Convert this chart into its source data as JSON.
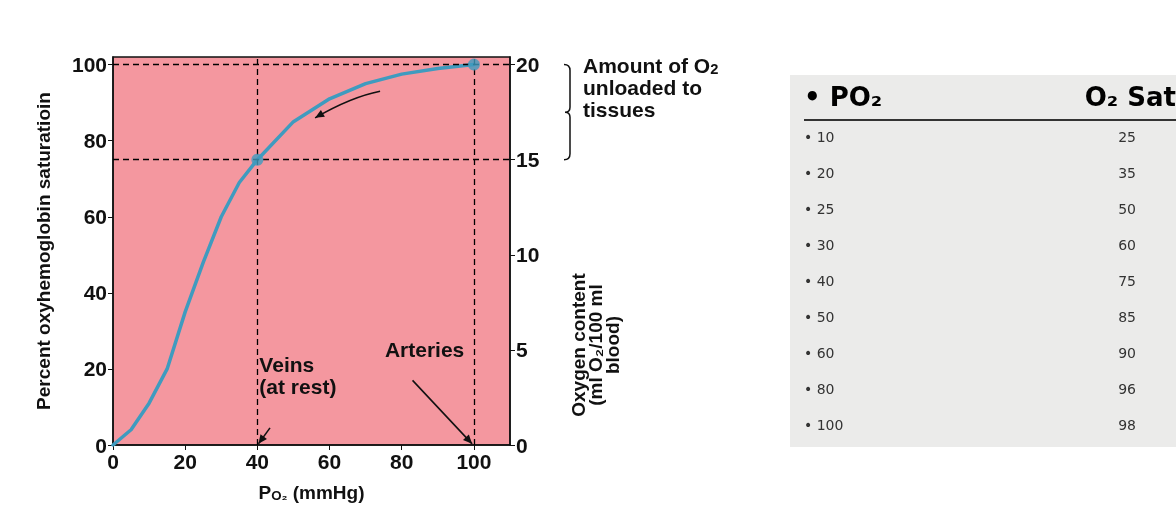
{
  "chart_data": [
    {
      "type": "line",
      "xlabel": "P$_{O₂}$ (mmHg)",
      "ylabel": "Percent oxyhemoglobin saturatioin",
      "y2label": "Oxygen content\n(ml O₂/100 ml\nblood)",
      "xlim": [
        0,
        110
      ],
      "xticks": [
        0,
        20,
        40,
        60,
        80,
        100
      ],
      "ylim": [
        0,
        102
      ],
      "yticks": [
        0,
        20,
        40,
        60,
        80,
        100
      ],
      "y2lim": [
        0,
        20.4
      ],
      "y2ticks": [
        0,
        5,
        10,
        15,
        20
      ],
      "grid": false,
      "line_style": "solid",
      "series": [
        {
          "type": "line",
          "color": "#3f9bbf",
          "x": [
            0,
            5,
            10,
            15,
            20,
            25,
            30,
            35,
            40,
            50,
            60,
            70,
            80,
            90,
            100
          ],
          "values": [
            0,
            4,
            11,
            20,
            35,
            48,
            60,
            69,
            75,
            85,
            91,
            95,
            97.5,
            99,
            100
          ]
        },
        {
          "type": "scatter",
          "color": "#3f9bbf",
          "x": [
            40,
            100
          ],
          "values": [
            75,
            100
          ]
        }
      ],
      "ref_lines": [
        {
          "axis": "y",
          "value": 100,
          "color": "#000000",
          "line_style": "dashed"
        },
        {
          "axis": "y",
          "value": 75,
          "color": "#000000",
          "line_style": "dashed"
        },
        {
          "axis": "x",
          "value": 40,
          "color": "#000000",
          "line_style": "dashed"
        },
        {
          "axis": "x",
          "value": 100,
          "color": "#000000",
          "line_style": "dashed"
        }
      ],
      "annotations": [
        {
          "text": "Veins\n(at rest)",
          "x": 40,
          "y": 0
        },
        {
          "text": "Arteries",
          "x": 100,
          "y": 0
        },
        "Amount of O$_{2}$\nunloaded to\ntissues"
      ]
    },
    {
      "type": "other",
      "annotations": [
        "•  PO₂",
        "O₂ Sat",
        "•  10",
        "25",
        "•  20",
        "35",
        "•  25",
        "50",
        "•  30",
        "60",
        "•  40",
        "75",
        "•  50",
        "85",
        "•  60",
        "90",
        "•  80",
        "96",
        "•  100",
        "98"
      ]
    }
  ]
}
